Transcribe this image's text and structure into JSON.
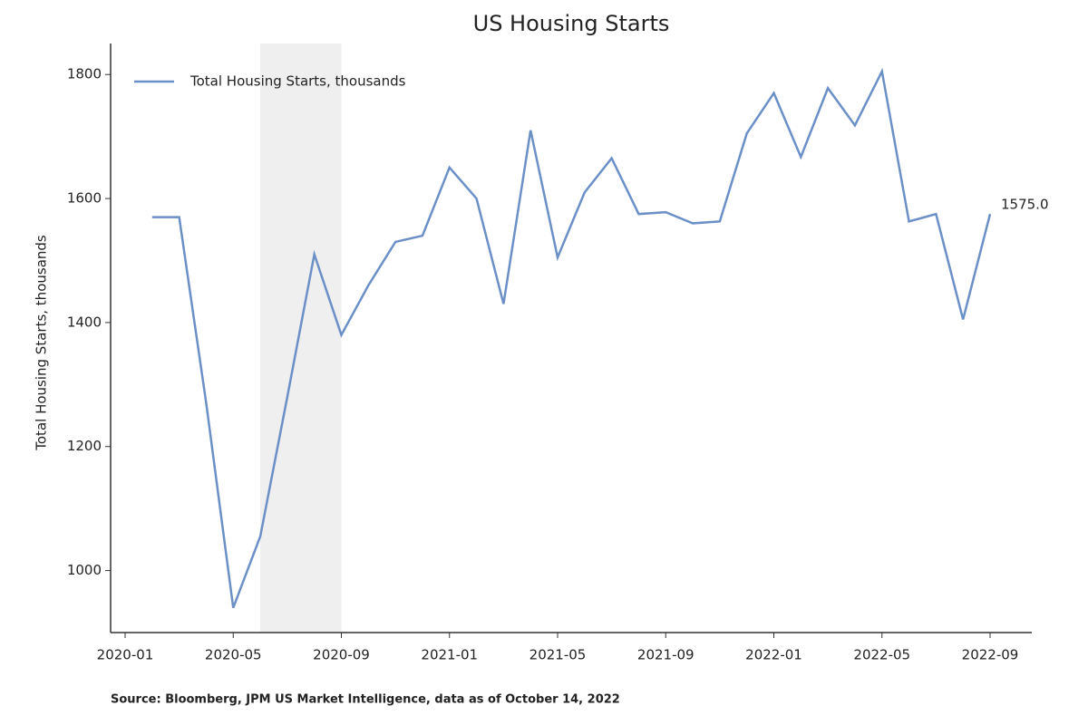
{
  "chart_data": {
    "type": "line",
    "title": "US Housing Starts",
    "y_label": "Total Housing Starts, thousands",
    "source": "Source: Bloomberg, JPM US Market Intelligence, data as of October 14, 2022",
    "x": [
      "2020-02",
      "2020-03",
      "2020-04",
      "2020-05",
      "2020-06",
      "2020-07",
      "2020-08",
      "2020-09",
      "2020-10",
      "2020-11",
      "2020-12",
      "2021-01",
      "2021-02",
      "2021-03",
      "2021-04",
      "2021-05",
      "2021-06",
      "2021-07",
      "2021-08",
      "2021-09",
      "2021-10",
      "2021-11",
      "2021-12",
      "2022-01",
      "2022-02",
      "2022-03",
      "2022-04",
      "2022-05",
      "2022-06",
      "2022-07",
      "2022-08",
      "2022-09"
    ],
    "series": [
      {
        "name": "Total Housing Starts, thousands",
        "color": "#6b8fc7",
        "values": [
          1570,
          1570,
          1270,
          940,
          1055,
          1280,
          1510,
          1380,
          1460,
          1530,
          1540,
          1650,
          1600,
          1430,
          1710,
          1505,
          1610,
          1665,
          1575,
          1578,
          1560,
          1563,
          1705,
          1770,
          1667,
          1778,
          1718,
          1805,
          1563,
          1575,
          1405,
          1575
        ],
        "value_labels": [
          null,
          null,
          null,
          null,
          null,
          null,
          null,
          null,
          null,
          null,
          null,
          null,
          null,
          null,
          null,
          null,
          null,
          null,
          null,
          null,
          null,
          null,
          null,
          null,
          null,
          null,
          null,
          null,
          null,
          null,
          null,
          "1575.0"
        ]
      }
    ],
    "xticks": [
      "2020-01",
      "2020-05",
      "2020-09",
      "2021-01",
      "2021-05",
      "2021-09",
      "2022-01",
      "2022-05",
      "2022-09"
    ],
    "ylim": [
      900,
      1850
    ],
    "yticks": [
      1000,
      1200,
      1400,
      1600,
      1800
    ],
    "shaded_span": [
      "2020-06",
      "2020-09"
    ],
    "legend": "upper left",
    "grid": false
  }
}
